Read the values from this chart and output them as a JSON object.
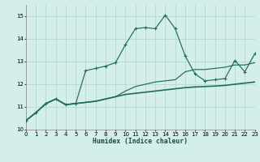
{
  "x": [
    0,
    1,
    2,
    3,
    4,
    5,
    6,
    7,
    8,
    9,
    10,
    11,
    12,
    13,
    14,
    15,
    16,
    17,
    18,
    19,
    20,
    21,
    22,
    23
  ],
  "main_line": [
    10.4,
    10.75,
    11.15,
    11.35,
    11.1,
    11.15,
    12.6,
    12.7,
    12.8,
    12.95,
    13.75,
    14.45,
    14.5,
    14.45,
    15.05,
    14.45,
    13.25,
    12.45,
    12.15,
    12.2,
    12.25,
    13.05,
    12.55,
    13.35
  ],
  "diag_line": [
    10.4,
    10.75,
    11.15,
    11.35,
    11.1,
    11.15,
    11.2,
    11.25,
    11.35,
    11.45,
    11.7,
    11.9,
    12.0,
    12.1,
    12.15,
    12.2,
    12.55,
    12.65,
    12.65,
    12.7,
    12.75,
    12.85,
    12.85,
    12.95
  ],
  "flat_line": [
    10.4,
    10.75,
    11.15,
    11.35,
    11.1,
    11.15,
    11.2,
    11.25,
    11.35,
    11.45,
    11.55,
    11.6,
    11.65,
    11.7,
    11.75,
    11.8,
    11.85,
    11.88,
    11.9,
    11.92,
    11.95,
    12.0,
    12.05,
    12.1
  ],
  "line_color": "#206b5e",
  "bg_color": "#d4eeea",
  "grid_color": "#b8d8d2",
  "xlabel": "Humidex (Indice chaleur)",
  "xlim": [
    0,
    23
  ],
  "ylim": [
    10.0,
    15.5
  ],
  "yticks": [
    10,
    11,
    12,
    13,
    14,
    15
  ],
  "xticks": [
    0,
    1,
    2,
    3,
    4,
    5,
    6,
    7,
    8,
    9,
    10,
    11,
    12,
    13,
    14,
    15,
    16,
    17,
    18,
    19,
    20,
    21,
    22,
    23
  ]
}
